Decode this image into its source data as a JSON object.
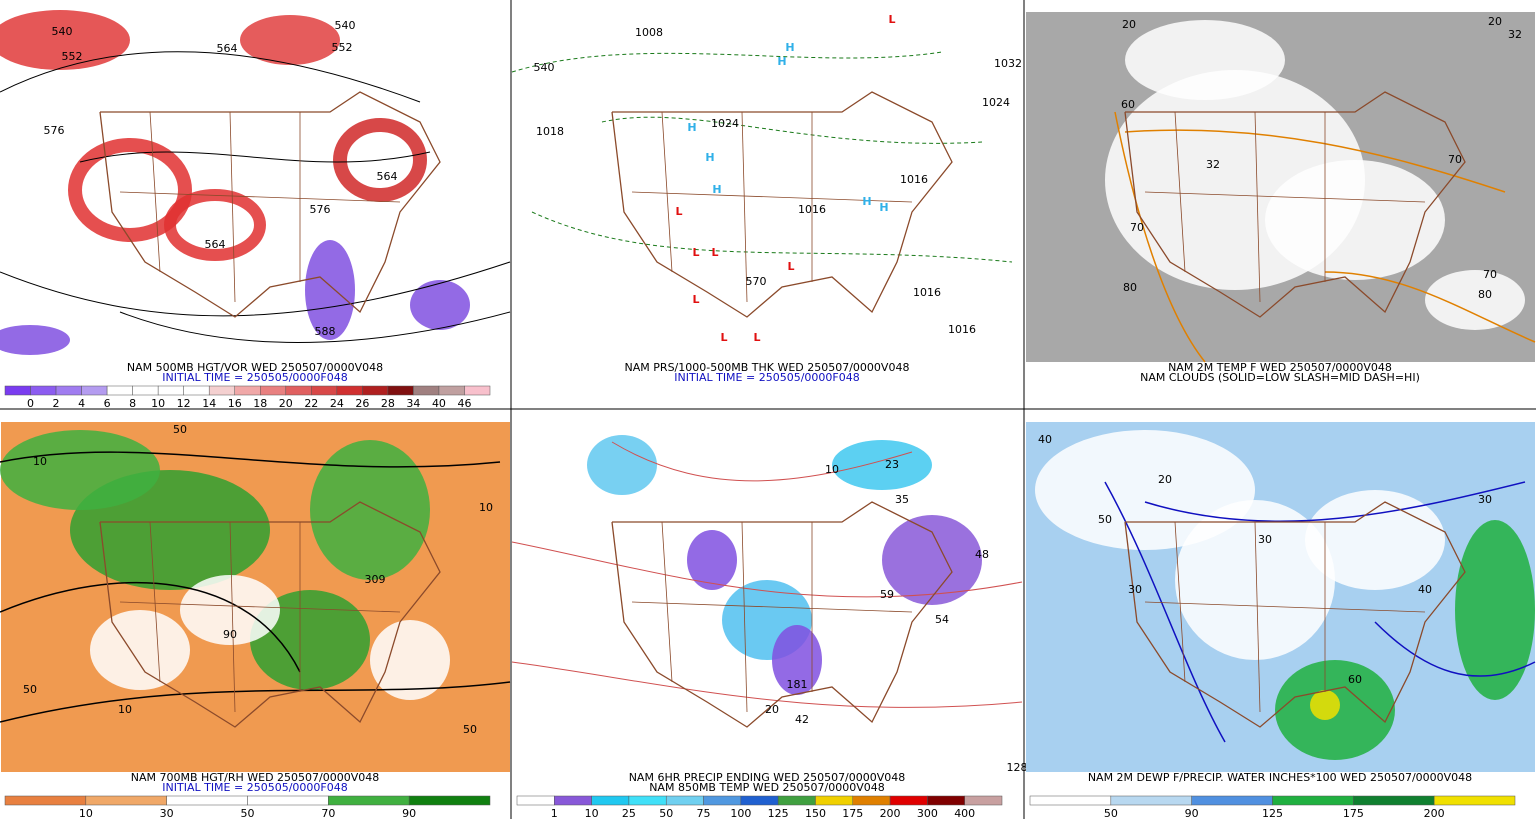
{
  "panels": [
    {
      "captions": [
        {
          "text": "NAM 500MB HGT/VOR WED 250507/0000V048",
          "color": "#000000"
        },
        {
          "text": "INITIAL TIME = 250505/0000F048",
          "color": "#1010c0"
        }
      ],
      "contour_labels": [
        "540",
        "552",
        "564",
        "576",
        "540",
        "552",
        "564",
        "576",
        "564",
        "588"
      ],
      "colorbar": {
        "colors": [
          "#7a3cf0",
          "#8c5cf0",
          "#a07cf0",
          "#b49cf0",
          "#ffffff",
          "#ffffff",
          "#ffffff",
          "#ffffff",
          "#f4d0d0",
          "#f0a8a8",
          "#e88080",
          "#e06060",
          "#d84848",
          "#d03030",
          "#b02020",
          "#801010",
          "#a08080",
          "#c0a0a0",
          "#f8c0cc"
        ],
        "labels": [
          "0",
          "2",
          "4",
          "6",
          "8",
          "10",
          "12",
          "14",
          "16",
          "18",
          "20",
          "22",
          "24",
          "26",
          "28",
          "34",
          "40",
          "46"
        ]
      }
    },
    {
      "captions": [
        {
          "text": "NAM PRS/1000-500MB THK WED 250507/0000V048",
          "color": "#000000"
        },
        {
          "text": "INITIAL TIME = 250505/0000F048",
          "color": "#1010c0"
        }
      ],
      "contour_labels": [
        "1008",
        "1018",
        "1024",
        "1016",
        "1016",
        "1032",
        "1024",
        "1016",
        "1016",
        "570",
        "540"
      ],
      "pressure_centers": [
        {
          "label": "H",
          "color": "#30b0e8"
        },
        {
          "label": "L",
          "color": "#e01010"
        }
      ]
    },
    {
      "captions": [
        {
          "text": "NAM 2M TEMP F WED 250507/0000V048",
          "color": "#000000"
        },
        {
          "text": "NAM CLOUDS (SOLID=LOW SLASH=MID DASH=HI)",
          "color": "#000000"
        }
      ],
      "contour_labels": [
        "20",
        "32",
        "20",
        "70",
        "80",
        "80",
        "70",
        "60",
        "70",
        "32"
      ]
    },
    {
      "captions": [
        {
          "text": "NAM 700MB HGT/RH WED 250507/0000V048",
          "color": "#000000"
        },
        {
          "text": "INITIAL TIME = 250505/0000F048",
          "color": "#1010c0"
        }
      ],
      "contour_labels": [
        "10",
        "50",
        "10",
        "309",
        "90",
        "50",
        "10",
        "50"
      ],
      "colorbar": {
        "colors": [
          "#e88040",
          "#f0a868",
          "#ffffff",
          "#ffffff",
          "#40b040",
          "#108010"
        ],
        "labels": [
          "10",
          "30",
          "50",
          "70",
          "90"
        ]
      }
    },
    {
      "captions": [
        {
          "text": "NAM 6HR PRECIP ENDING WED 250507/0000V048",
          "color": "#000000"
        },
        {
          "text": "NAM 850MB TEMP WED 250507/0000V048",
          "color": "#000000"
        }
      ],
      "contour_labels": [
        "10",
        "23",
        "35",
        "48",
        "59",
        "54",
        "181",
        "42",
        "128",
        "20"
      ],
      "colorbar": {
        "colors": [
          "#ffffff",
          "#8858d8",
          "#20c8f0",
          "#40e0f8",
          "#70d0f0",
          "#5098e0",
          "#2060d0",
          "#40a040",
          "#f0d000",
          "#e08000",
          "#e00000",
          "#800000",
          "#c8a0a0"
        ],
        "labels": [
          "1",
          "10",
          "25",
          "50",
          "75",
          "100",
          "125",
          "150",
          "175",
          "200",
          "300",
          "400"
        ]
      }
    },
    {
      "captions": [
        {
          "text": "NAM 2M DEWP F/PRECIP. WATER INCHES*100 WED 250507/0000V048",
          "color": "#000000"
        }
      ],
      "contour_labels": [
        "40",
        "50",
        "30",
        "20",
        "30",
        "60",
        "40",
        "30"
      ],
      "colorbar": {
        "colors": [
          "#ffffff",
          "#b8d8f0",
          "#5090e0",
          "#20b040",
          "#108030",
          "#f0e000"
        ],
        "labels": [
          "50",
          "90",
          "125",
          "175",
          "200"
        ]
      }
    }
  ]
}
